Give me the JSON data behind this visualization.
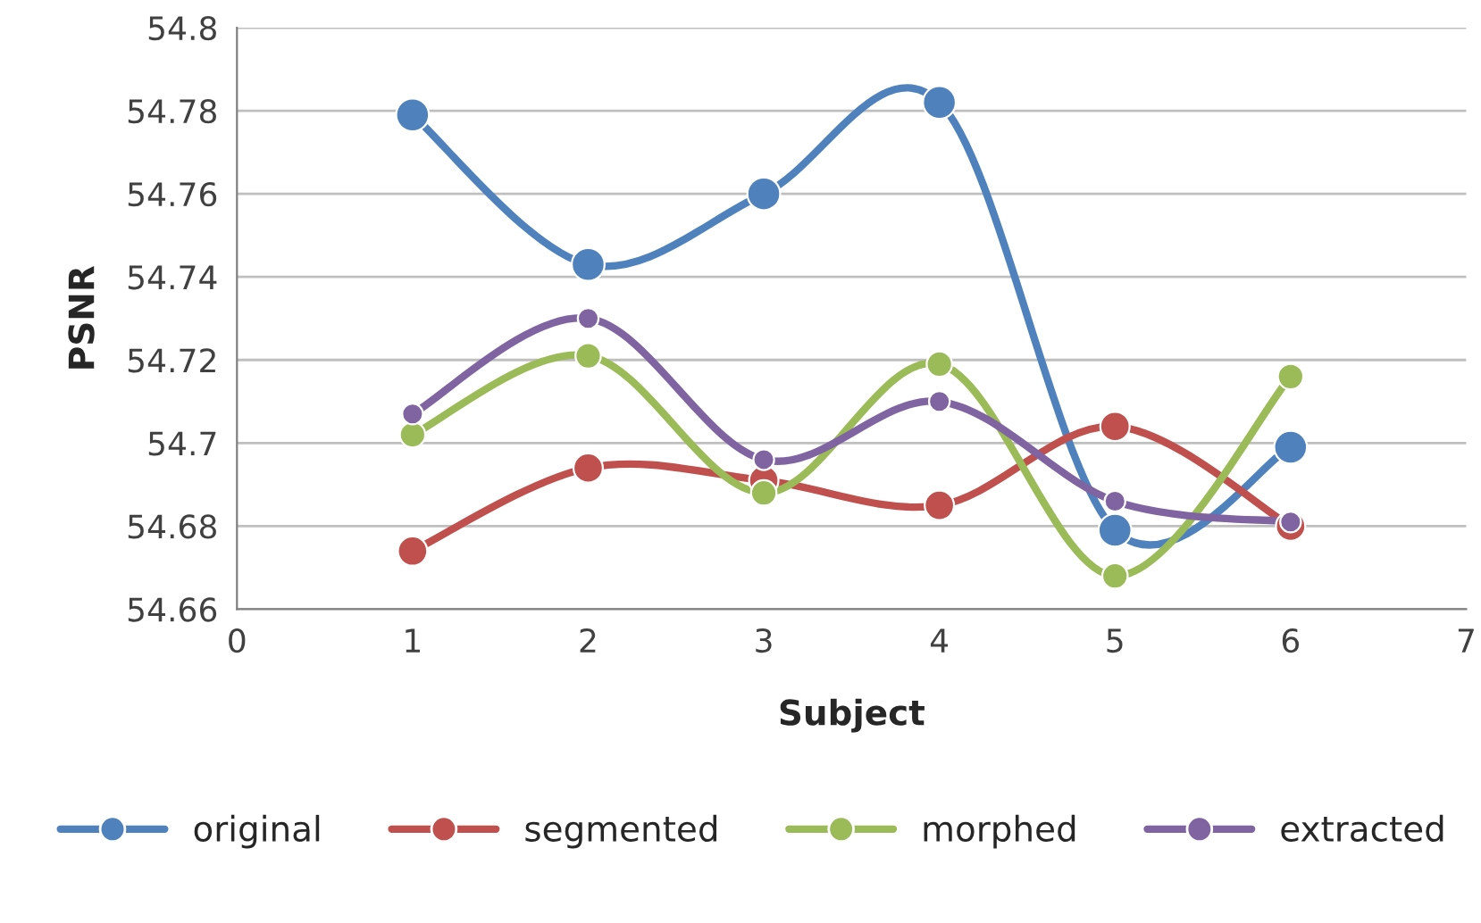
{
  "chart_data": {
    "type": "line",
    "xlabel": "Subject",
    "ylabel": "PSNR",
    "x": [
      1,
      2,
      3,
      4,
      5,
      6
    ],
    "series": [
      {
        "name": "original",
        "color": "#4f81bd",
        "values": [
          54.779,
          54.743,
          54.76,
          54.782,
          54.679,
          54.699
        ]
      },
      {
        "name": "segmented",
        "color": "#c0504d",
        "values": [
          54.674,
          54.694,
          54.691,
          54.685,
          54.704,
          54.68
        ]
      },
      {
        "name": "morphed",
        "color": "#9bbb59",
        "values": [
          54.702,
          54.721,
          54.688,
          54.719,
          54.668,
          54.716
        ]
      },
      {
        "name": "extracted",
        "color": "#8064a2",
        "values": [
          54.707,
          54.73,
          54.696,
          54.71,
          54.686,
          54.681
        ]
      }
    ],
    "xlim": [
      0,
      7
    ],
    "xticks": [
      0,
      1,
      2,
      3,
      4,
      5,
      6,
      7
    ],
    "ylim": [
      54.66,
      54.8
    ],
    "yticks": [
      54.66,
      54.68,
      54.7,
      54.72,
      54.74,
      54.76,
      54.78,
      54.8
    ],
    "grid": "y",
    "legend": "bottom",
    "marker": "circle",
    "line_style": "solid"
  }
}
